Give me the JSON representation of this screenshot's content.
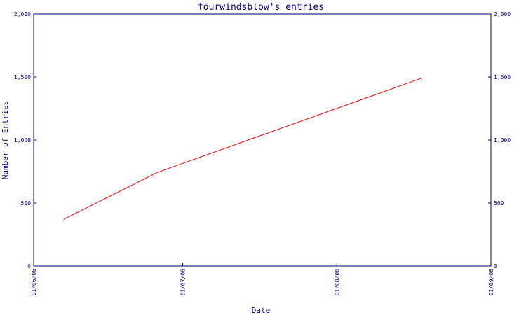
{
  "chart_data": {
    "type": "line",
    "title": "fourwindsblow's entries",
    "xlabel": "Date",
    "ylabel": "Number of Entries",
    "ylim": [
      0,
      2000
    ],
    "y_ticks": [
      0,
      500,
      1000,
      1500,
      2000
    ],
    "y_tick_labels": [
      "0",
      "500",
      "1,000",
      "1,500",
      "2,000"
    ],
    "x_ticks": [
      "2006-06-01",
      "2006-07-01",
      "2006-08-01",
      "2006-09-01"
    ],
    "x_tick_labels": [
      "01/06/06",
      "01/07/06",
      "01/08/06",
      "01/09/06"
    ],
    "xlim": [
      "2006-06-01",
      "2006-09-01"
    ],
    "grid": false,
    "colors": {
      "axis": "#000080",
      "line": "#ff0000",
      "background": "#ffffff"
    },
    "series": [
      {
        "x": [
          "2006-06-07",
          "2006-06-26",
          "2006-08-18"
        ],
        "values": [
          370,
          745,
          1490
        ]
      }
    ]
  }
}
